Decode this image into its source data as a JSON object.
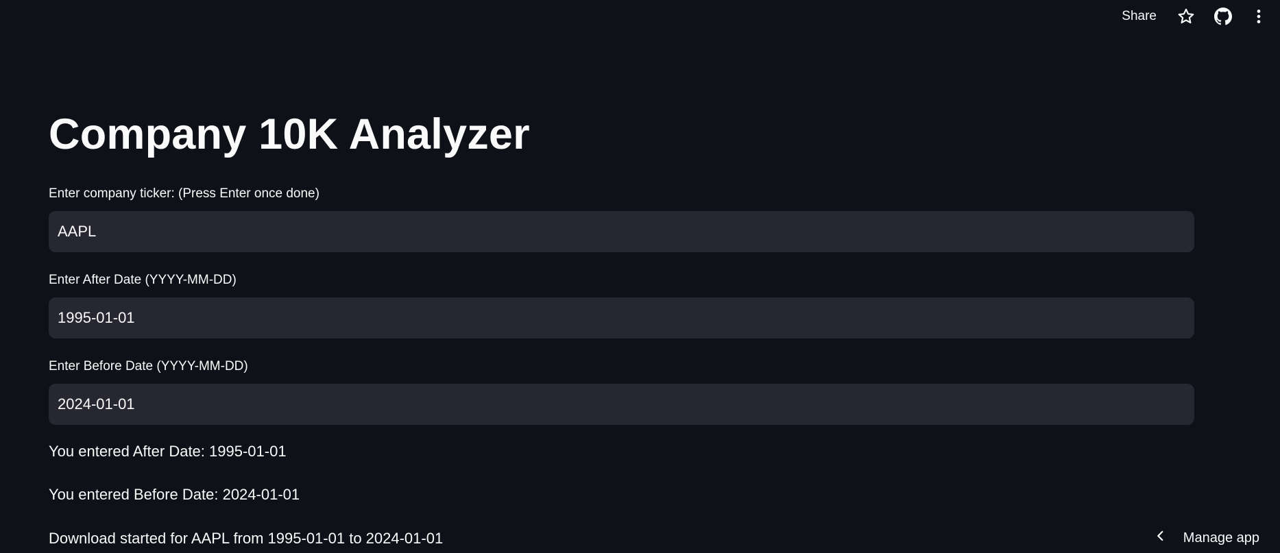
{
  "header": {
    "share_label": "Share",
    "icons": [
      "star-icon",
      "github-icon",
      "more-vertical-icon"
    ]
  },
  "main": {
    "title": "Company 10K Analyzer",
    "ticker": {
      "label": "Enter company ticker: (Press Enter once done)",
      "value": "AAPL"
    },
    "after_date": {
      "label": "Enter After Date (YYYY-MM-DD)",
      "value": "1995-01-01"
    },
    "before_date": {
      "label": "Enter Before Date (YYYY-MM-DD)",
      "value": "2024-01-01"
    },
    "messages": [
      "You entered After Date: 1995-01-01",
      "You entered Before Date: 2024-01-01",
      "Download started for AAPL from 1995-01-01 to 2024-01-01"
    ]
  },
  "footer": {
    "manage_app_label": "Manage app"
  },
  "colors": {
    "background": "#0e1117",
    "input_background": "#262730",
    "text": "#fafafa"
  }
}
